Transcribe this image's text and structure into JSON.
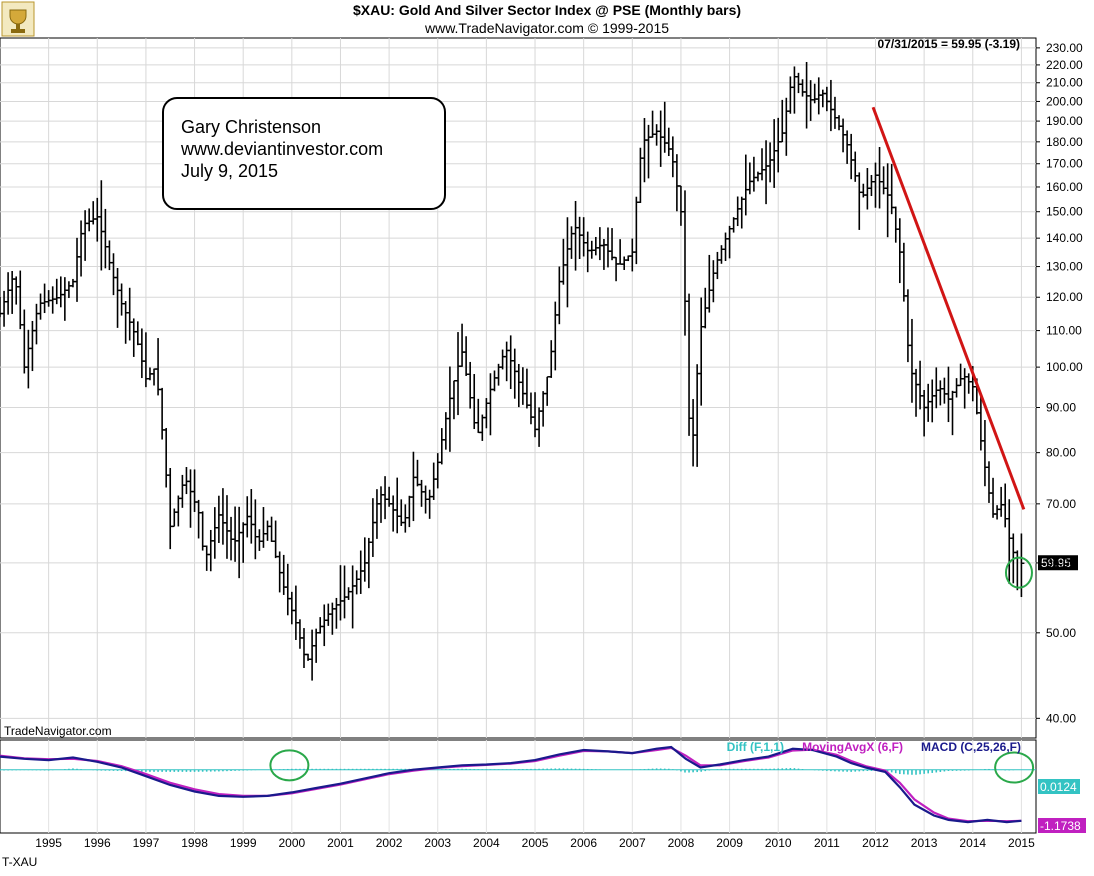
{
  "header": {
    "title": "$XAU:  Gold And Silver Sector Index @ PSE  (Monthly bars)",
    "subtitle": "www.TradeNavigator.com © 1999-2015",
    "last_value_label": "07/31/2015 = 59.95 (-3.19)",
    "logo_icon": "trophy-logo-icon"
  },
  "annotation": {
    "lines": [
      "Gary Christenson",
      "www.deviantinvestor.com",
      "July 9, 2015"
    ]
  },
  "watermark": "TradeNavigator.com",
  "footer_symbol": "T-XAU",
  "colors": {
    "bars": "#000000",
    "trendline": "#d11515",
    "circle": "#2aa84a",
    "macd": "#1a1a8c",
    "moving_avg": "#c020c0",
    "diff": "#33c3c3",
    "price_tag_bg": "#000000",
    "diff_tag_bg": "#33c3c3",
    "macd_tag_bg": "#c020c0"
  },
  "chart_data": [
    {
      "type": "ohlc-bar",
      "title": "$XAU:  Gold And Silver Sector Index @ PSE  (Monthly bars)",
      "y_scale": "log",
      "ylim": [
        38,
        236
      ],
      "xlim": [
        1994.5,
        2015.8
      ],
      "y_ticks": [
        "230.00",
        "220.00",
        "210.00",
        "200.00",
        "190.00",
        "180.00",
        "170.00",
        "160.00",
        "150.00",
        "140.00",
        "130.00",
        "120.00",
        "110.00",
        "100.00",
        "90.00",
        "80.00",
        "70.00",
        "60.00",
        "50.00",
        "40.00"
      ],
      "last_price": "59.95",
      "anchors": [
        [
          1994.5,
          115
        ],
        [
          1994.8,
          128
        ],
        [
          1995.0,
          100
        ],
        [
          1995.3,
          118
        ],
        [
          1995.7,
          120
        ],
        [
          1996.0,
          125
        ],
        [
          1996.2,
          145
        ],
        [
          1996.5,
          148
        ],
        [
          1996.8,
          128
        ],
        [
          1997.0,
          118
        ],
        [
          1997.3,
          108
        ],
        [
          1997.5,
          97
        ],
        [
          1997.7,
          100
        ],
        [
          1998.0,
          66
        ],
        [
          1998.3,
          75
        ],
        [
          1998.6,
          68
        ],
        [
          1998.7,
          60
        ],
        [
          1999.0,
          68
        ],
        [
          1999.3,
          63
        ],
        [
          1999.6,
          68
        ],
        [
          1999.8,
          63
        ],
        [
          2000.0,
          66
        ],
        [
          2000.3,
          57
        ],
        [
          2000.6,
          51
        ],
        [
          2000.8,
          46
        ],
        [
          2001.0,
          50
        ],
        [
          2001.3,
          53
        ],
        [
          2001.6,
          55
        ],
        [
          2001.8,
          57
        ],
        [
          2002.0,
          60
        ],
        [
          2002.3,
          72
        ],
        [
          2002.5,
          70
        ],
        [
          2002.8,
          66
        ],
        [
          2003.0,
          75
        ],
        [
          2003.3,
          70
        ],
        [
          2003.5,
          78
        ],
        [
          2003.8,
          95
        ],
        [
          2004.0,
          104
        ],
        [
          2004.3,
          83
        ],
        [
          2004.6,
          95
        ],
        [
          2004.9,
          105
        ],
        [
          2005.2,
          95
        ],
        [
          2005.5,
          85
        ],
        [
          2005.8,
          100
        ],
        [
          2006.0,
          125
        ],
        [
          2006.3,
          145
        ],
        [
          2006.6,
          135
        ],
        [
          2006.9,
          138
        ],
        [
          2007.2,
          130
        ],
        [
          2007.5,
          135
        ],
        [
          2007.7,
          180
        ],
        [
          2008.0,
          185
        ],
        [
          2008.3,
          175
        ],
        [
          2008.5,
          150
        ],
        [
          2008.7,
          75
        ],
        [
          2008.9,
          110
        ],
        [
          2009.2,
          130
        ],
        [
          2009.6,
          148
        ],
        [
          2009.9,
          162
        ],
        [
          2010.3,
          170
        ],
        [
          2010.6,
          185
        ],
        [
          2010.8,
          215
        ],
        [
          2011.0,
          205
        ],
        [
          2011.2,
          200
        ],
        [
          2011.4,
          205
        ],
        [
          2011.7,
          190
        ],
        [
          2011.9,
          180
        ],
        [
          2012.2,
          155
        ],
        [
          2012.5,
          165
        ],
        [
          2012.8,
          155
        ],
        [
          2013.0,
          135
        ],
        [
          2013.2,
          100
        ],
        [
          2013.5,
          90
        ],
        [
          2013.8,
          95
        ],
        [
          2014.0,
          92
        ],
        [
          2014.3,
          98
        ],
        [
          2014.5,
          95
        ],
        [
          2014.7,
          80
        ],
        [
          2014.9,
          68
        ],
        [
          2015.1,
          70
        ],
        [
          2015.3,
          62
        ],
        [
          2015.5,
          59.95
        ]
      ],
      "trendline": {
        "from": [
          2012.45,
          197
        ],
        "to": [
          2015.55,
          69
        ]
      },
      "circle_center": [
        2015.45,
        58.5
      ]
    },
    {
      "type": "line",
      "legend": [
        {
          "name": "Diff (F,1,1)",
          "color": "#33c3c3"
        },
        {
          "name": "MovingAvgX (6,F)",
          "color": "#c020c0"
        },
        {
          "name": "MACD (C,25,26,F)",
          "color": "#1a1a8c"
        }
      ],
      "ylim": [
        -1.45,
        0.68
      ],
      "value_tags": [
        "0.0124",
        "-1.1738"
      ],
      "x_tick_labels": [
        "1995",
        "1996",
        "1997",
        "1998",
        "1999",
        "2000",
        "2001",
        "2002",
        "2003",
        "2004",
        "2005",
        "2006",
        "2007",
        "2008",
        "2009",
        "2010",
        "2011",
        "2012",
        "2013",
        "2014",
        "2015"
      ],
      "macd": [
        [
          1994.5,
          0.3
        ],
        [
          1995.0,
          0.25
        ],
        [
          1995.5,
          0.22
        ],
        [
          1996.0,
          0.28
        ],
        [
          1996.5,
          0.18
        ],
        [
          1997.0,
          0.05
        ],
        [
          1997.5,
          -0.15
        ],
        [
          1998.0,
          -0.35
        ],
        [
          1998.5,
          -0.5
        ],
        [
          1999.0,
          -0.6
        ],
        [
          1999.5,
          -0.62
        ],
        [
          2000.0,
          -0.6
        ],
        [
          2000.5,
          -0.52
        ],
        [
          2001.0,
          -0.42
        ],
        [
          2001.5,
          -0.32
        ],
        [
          2002.0,
          -0.2
        ],
        [
          2002.5,
          -0.08
        ],
        [
          2003.0,
          0.0
        ],
        [
          2003.5,
          0.05
        ],
        [
          2004.0,
          0.1
        ],
        [
          2004.5,
          0.12
        ],
        [
          2005.0,
          0.15
        ],
        [
          2005.5,
          0.22
        ],
        [
          2006.0,
          0.35
        ],
        [
          2006.5,
          0.45
        ],
        [
          2007.0,
          0.42
        ],
        [
          2007.5,
          0.38
        ],
        [
          2008.0,
          0.48
        ],
        [
          2008.3,
          0.52
        ],
        [
          2008.6,
          0.25
        ],
        [
          2008.9,
          0.05
        ],
        [
          2009.3,
          0.12
        ],
        [
          2009.8,
          0.22
        ],
        [
          2010.3,
          0.3
        ],
        [
          2010.8,
          0.48
        ],
        [
          2011.2,
          0.45
        ],
        [
          2011.7,
          0.3
        ],
        [
          2012.0,
          0.15
        ],
        [
          2012.3,
          0.05
        ],
        [
          2012.7,
          -0.05
        ],
        [
          2013.0,
          -0.4
        ],
        [
          2013.3,
          -0.8
        ],
        [
          2013.7,
          -1.05
        ],
        [
          2014.0,
          -1.15
        ],
        [
          2014.4,
          -1.2
        ],
        [
          2014.8,
          -1.15
        ],
        [
          2015.2,
          -1.2
        ],
        [
          2015.5,
          -1.17
        ]
      ],
      "moving_avg": [
        [
          1994.5,
          0.32
        ],
        [
          1995.0,
          0.26
        ],
        [
          1995.5,
          0.24
        ],
        [
          1996.0,
          0.25
        ],
        [
          1996.5,
          0.2
        ],
        [
          1997.0,
          0.08
        ],
        [
          1997.5,
          -0.1
        ],
        [
          1998.0,
          -0.3
        ],
        [
          1998.5,
          -0.45
        ],
        [
          1999.0,
          -0.56
        ],
        [
          1999.5,
          -0.6
        ],
        [
          2000.0,
          -0.6
        ],
        [
          2000.5,
          -0.54
        ],
        [
          2001.0,
          -0.44
        ],
        [
          2001.5,
          -0.34
        ],
        [
          2002.0,
          -0.22
        ],
        [
          2002.5,
          -0.1
        ],
        [
          2003.0,
          -0.02
        ],
        [
          2003.5,
          0.04
        ],
        [
          2004.0,
          0.08
        ],
        [
          2004.5,
          0.11
        ],
        [
          2005.0,
          0.14
        ],
        [
          2005.5,
          0.2
        ],
        [
          2006.0,
          0.32
        ],
        [
          2006.5,
          0.43
        ],
        [
          2007.0,
          0.42
        ],
        [
          2007.5,
          0.38
        ],
        [
          2008.0,
          0.45
        ],
        [
          2008.3,
          0.5
        ],
        [
          2008.6,
          0.32
        ],
        [
          2008.9,
          0.1
        ],
        [
          2009.3,
          0.1
        ],
        [
          2009.8,
          0.2
        ],
        [
          2010.3,
          0.28
        ],
        [
          2010.8,
          0.44
        ],
        [
          2011.2,
          0.46
        ],
        [
          2011.7,
          0.34
        ],
        [
          2012.0,
          0.2
        ],
        [
          2012.3,
          0.08
        ],
        [
          2012.7,
          -0.02
        ],
        [
          2013.0,
          -0.3
        ],
        [
          2013.3,
          -0.68
        ],
        [
          2013.7,
          -0.98
        ],
        [
          2014.0,
          -1.12
        ],
        [
          2014.4,
          -1.18
        ],
        [
          2014.8,
          -1.17
        ],
        [
          2015.2,
          -1.18
        ],
        [
          2015.5,
          -1.17
        ]
      ],
      "circles": [
        [
          2000.45,
          0.1
        ],
        [
          2015.35,
          0.05
        ]
      ]
    }
  ]
}
